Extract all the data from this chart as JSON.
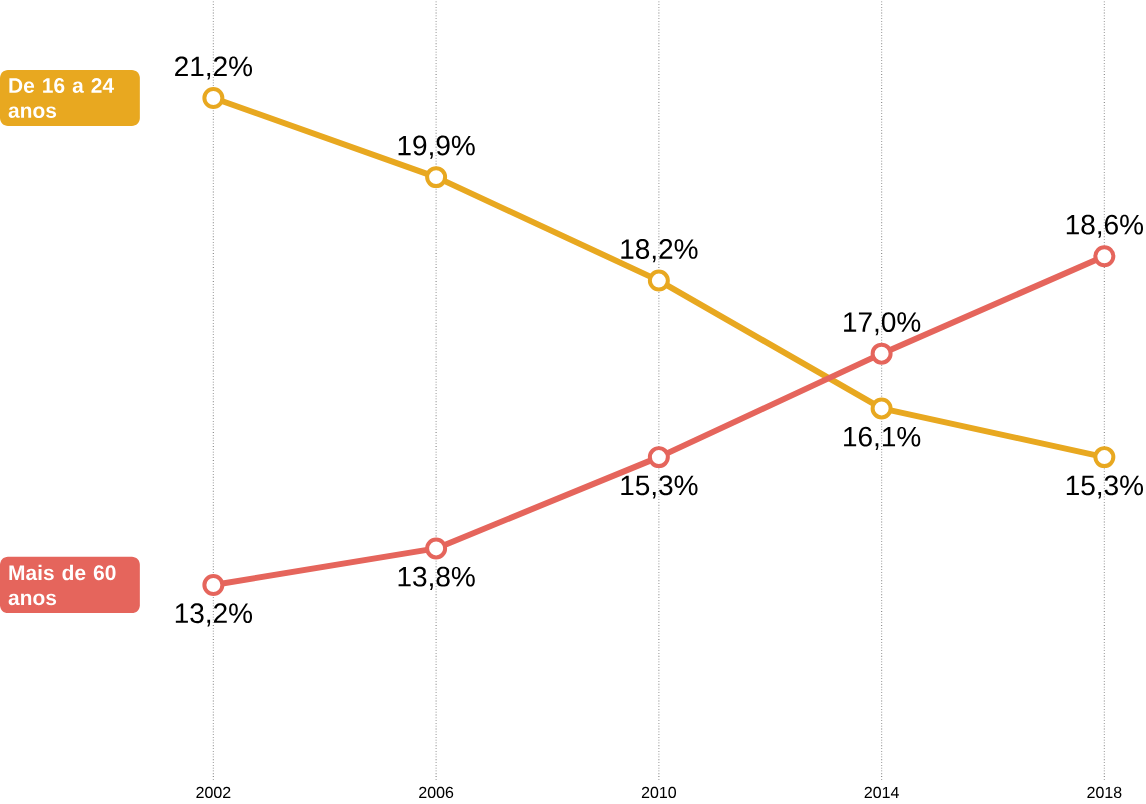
{
  "chart_data": {
    "type": "line",
    "x": [
      2002,
      2006,
      2010,
      2014,
      2018
    ],
    "series": [
      {
        "name": "De 16 a 24 anos",
        "color": "#e8a820",
        "values": [
          21.2,
          19.9,
          18.2,
          16.1,
          15.3
        ],
        "value_labels": [
          "21,2%",
          "19,9%",
          "18,2%",
          "16,1%",
          "15,3%"
        ]
      },
      {
        "name": "Mais de 60 anos",
        "color": "#e5655c",
        "values": [
          13.2,
          13.8,
          15.3,
          17.0,
          18.6
        ],
        "value_labels": [
          "13,2%",
          "13,8%",
          "15,3%",
          "17,0%",
          "18,6%"
        ]
      }
    ],
    "xlim": [
      2002,
      2018
    ],
    "xticks": [
      2002,
      2006,
      2010,
      2014,
      2018
    ],
    "ylim": [
      10,
      22.8
    ],
    "tick_labels": "x",
    "grid": "x",
    "legend": false,
    "marker": "circle",
    "line_style": "solid"
  }
}
